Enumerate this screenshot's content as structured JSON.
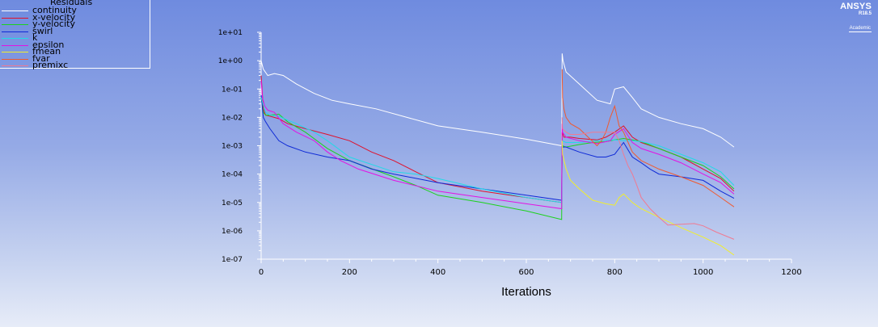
{
  "legend": {
    "title": "Residuals",
    "items": [
      {
        "label": "continuity",
        "color": "#ffffff"
      },
      {
        "label": "x-velocity",
        "color": "#e0102a"
      },
      {
        "label": "y-velocity",
        "color": "#1cd21c"
      },
      {
        "label": "swirl",
        "color": "#0f2ad6"
      },
      {
        "label": "k",
        "color": "#23d9e6"
      },
      {
        "label": "epsilon",
        "color": "#e312e3"
      },
      {
        "label": "fmean",
        "color": "#f2ef2a"
      },
      {
        "label": "fvar",
        "color": "#f05a30"
      },
      {
        "label": "premixc",
        "color": "#f07a92"
      }
    ]
  },
  "logo": {
    "brand": "ANSYS",
    "release": "R18.5",
    "edition": "Academic"
  },
  "chart_data": {
    "type": "line",
    "title": "",
    "xlabel": "Iterations",
    "ylabel": "",
    "xlim": [
      0,
      1200
    ],
    "ylim": [
      1e-07,
      10
    ],
    "yscale": "log",
    "grid": false,
    "legend_position": "top-left",
    "x_ticks": [
      0,
      200,
      400,
      600,
      800,
      1000,
      1200
    ],
    "x_tick_labels": [
      "0",
      "200",
      "400",
      "600",
      "800",
      "1000",
      "1200"
    ],
    "y_ticks": [
      1e-07,
      1e-06,
      1e-05,
      0.0001,
      0.001,
      0.01,
      0.1,
      1,
      10
    ],
    "y_tick_labels": [
      "1e-07",
      "1e-06",
      "1e-05",
      "1e-04",
      "1e-03",
      "1e-02",
      "1e-01",
      "1e+00",
      "1e+01"
    ],
    "series": [
      {
        "name": "continuity",
        "x": [
          0,
          5,
          15,
          30,
          50,
          80,
          120,
          160,
          200,
          260,
          330,
          400,
          500,
          600,
          680,
          681,
          683,
          690,
          720,
          760,
          790,
          800,
          820,
          840,
          860,
          900,
          950,
          1000,
          1040,
          1070
        ],
        "y": [
          1.0,
          0.5,
          0.3,
          0.35,
          0.3,
          0.15,
          0.07,
          0.04,
          0.03,
          0.02,
          0.01,
          0.005,
          0.003,
          0.0017,
          0.001,
          1.8,
          1.0,
          0.4,
          0.15,
          0.04,
          0.03,
          0.1,
          0.12,
          0.05,
          0.02,
          0.01,
          0.006,
          0.004,
          0.002,
          0.0009
        ]
      },
      {
        "name": "x-velocity",
        "x": [
          0,
          5,
          10,
          20,
          40,
          60,
          100,
          150,
          200,
          250,
          300,
          350,
          400,
          500,
          600,
          680,
          681,
          685,
          700,
          720,
          740,
          760,
          780,
          800,
          820,
          840,
          860,
          900,
          950,
          1000,
          1040,
          1070
        ],
        "y": [
          0.3,
          0.02,
          0.012,
          0.011,
          0.009,
          0.006,
          0.004,
          0.0025,
          0.0015,
          0.0006,
          0.0003,
          0.00012,
          5e-05,
          2.5e-05,
          1.5e-05,
          1e-05,
          0.003,
          0.002,
          0.002,
          0.0018,
          0.0017,
          0.0016,
          0.002,
          0.003,
          0.005,
          0.002,
          0.0013,
          0.0008,
          0.0004,
          0.00015,
          7e-05,
          2.5e-05
        ]
      },
      {
        "name": "y-velocity",
        "x": [
          0,
          5,
          10,
          20,
          40,
          60,
          100,
          150,
          200,
          300,
          350,
          400,
          500,
          600,
          680,
          681,
          690,
          720,
          750,
          780,
          800,
          820,
          840,
          860,
          900,
          950,
          1000,
          1040,
          1070
        ],
        "y": [
          0.05,
          0.015,
          0.012,
          0.012,
          0.013,
          0.007,
          0.003,
          0.0008,
          0.0003,
          8e-05,
          4e-05,
          1.8e-05,
          1e-05,
          5e-06,
          2.5e-06,
          0.001,
          0.0009,
          0.0011,
          0.0013,
          0.0014,
          0.0016,
          0.0018,
          0.0016,
          0.0014,
          0.0008,
          0.0004,
          0.0002,
          8e-05,
          3e-05
        ]
      },
      {
        "name": "swirl",
        "x": [
          0,
          5,
          10,
          20,
          40,
          60,
          100,
          150,
          200,
          250,
          300,
          400,
          500,
          600,
          680,
          681,
          690,
          720,
          760,
          780,
          800,
          820,
          840,
          860,
          880,
          900,
          950,
          1000,
          1040,
          1070
        ],
        "y": [
          0.06,
          0.01,
          0.007,
          0.004,
          0.0015,
          0.001,
          0.0006,
          0.0004,
          0.0003,
          0.00015,
          0.0001,
          5e-05,
          3e-05,
          1.8e-05,
          1.2e-05,
          0.0009,
          0.0009,
          0.0006,
          0.0004,
          0.0004,
          0.0005,
          0.0013,
          0.0004,
          0.00025,
          0.00015,
          0.0001,
          8e-05,
          6e-05,
          2.5e-05,
          1.4e-05
        ]
      },
      {
        "name": "k",
        "x": [
          0,
          10,
          20,
          40,
          60,
          80,
          120,
          150,
          200,
          300,
          350,
          400,
          500,
          600,
          680,
          681,
          690,
          720,
          760,
          800,
          820,
          840,
          860,
          900,
          950,
          1000,
          1040,
          1070
        ],
        "y": [
          0.05,
          0.015,
          0.012,
          0.011,
          0.008,
          0.006,
          0.003,
          0.0015,
          0.0004,
          0.00012,
          0.0001,
          7e-05,
          3e-05,
          1.5e-05,
          1e-05,
          0.0015,
          0.0013,
          0.0013,
          0.0015,
          0.0016,
          0.0015,
          0.0015,
          0.0014,
          0.001,
          0.0005,
          0.00025,
          0.00012,
          4e-05
        ]
      },
      {
        "name": "epsilon",
        "x": [
          0,
          3,
          8,
          15,
          30,
          50,
          80,
          120,
          150,
          180,
          220,
          300,
          400,
          500,
          600,
          680,
          681,
          682,
          690,
          720,
          760,
          790,
          800,
          820,
          840,
          860,
          900,
          950,
          1000,
          1040,
          1070
        ],
        "y": [
          0.2,
          0.05,
          0.025,
          0.018,
          0.015,
          0.006,
          0.003,
          0.0015,
          0.0006,
          0.0003,
          0.00015,
          6e-05,
          2.5e-05,
          1.5e-05,
          9e-06,
          6e-06,
          0.006,
          0.003,
          0.002,
          0.0015,
          0.0012,
          0.0015,
          0.0025,
          0.004,
          0.0013,
          0.0008,
          0.0005,
          0.00025,
          0.0001,
          5e-05,
          2e-05
        ]
      },
      {
        "name": "fmean",
        "x": [
          681,
          682,
          690,
          700,
          720,
          750,
          780,
          800,
          810,
          820,
          840,
          860,
          900,
          950,
          1000,
          1040,
          1070
        ],
        "y": [
          0.0015,
          0.0005,
          0.00015,
          6e-05,
          3e-05,
          1.2e-05,
          9e-06,
          8e-06,
          1.5e-05,
          2e-05,
          1e-05,
          6e-06,
          3e-06,
          1.3e-06,
          6e-07,
          3e-07,
          1.4e-07
        ]
      },
      {
        "name": "fvar",
        "x": [
          681,
          682,
          685,
          690,
          700,
          720,
          740,
          760,
          770,
          780,
          790,
          800,
          810,
          820,
          840,
          860,
          900,
          950,
          1000,
          1040,
          1070
        ],
        "y": [
          0.5,
          0.05,
          0.02,
          0.01,
          0.006,
          0.004,
          0.002,
          0.001,
          0.0015,
          0.003,
          0.01,
          0.025,
          0.005,
          0.003,
          0.0006,
          0.0003,
          0.00015,
          8e-05,
          4e-05,
          1.5e-05,
          7e-06
        ]
      },
      {
        "name": "premixc",
        "x": [
          681,
          682,
          690,
          700,
          720,
          750,
          780,
          800,
          810,
          820,
          830,
          840,
          850,
          860,
          880,
          900,
          920,
          950,
          980,
          1000,
          1030,
          1070
        ],
        "y": [
          0.01,
          0.004,
          0.003,
          0.0025,
          0.0025,
          0.003,
          0.003,
          0.003,
          0.0015,
          0.0005,
          0.0002,
          0.0001,
          4e-05,
          1.5e-05,
          6e-06,
          3e-06,
          1.6e-06,
          1.7e-06,
          1.8e-06,
          1.5e-06,
          9e-07,
          5e-07
        ]
      }
    ]
  }
}
